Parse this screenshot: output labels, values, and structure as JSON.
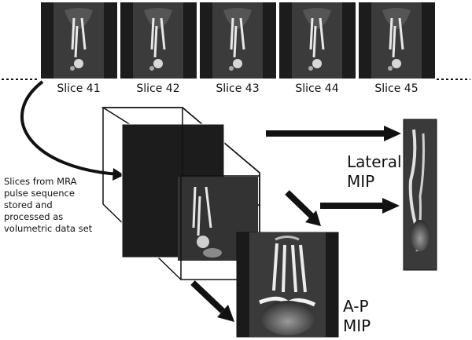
{
  "slices": [
    {
      "label": "Slice 41"
    },
    {
      "label": "Slice 42"
    },
    {
      "label": "Slice 43"
    },
    {
      "label": "Slice 44"
    },
    {
      "label": "Slice 45"
    }
  ],
  "caption": {
    "lines": [
      "Slices from MRA",
      "pulse sequence",
      "stored and",
      "processed as",
      "volumetric data set"
    ]
  },
  "lateral": {
    "lines": [
      "Lateral",
      "MIP"
    ]
  },
  "ap": {
    "lines": [
      "A-P",
      "MIP"
    ]
  },
  "colors": {
    "slice_bg": "#1c1c1c",
    "slice_panel": "#3a3a3a",
    "arrow": "#222222",
    "vessel": "#e8e8e8"
  }
}
